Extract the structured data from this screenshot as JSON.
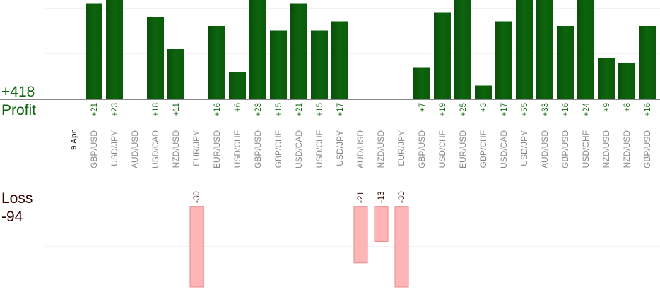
{
  "summary": {
    "profit_total": "+418",
    "profit_label": "Profit",
    "loss_label": "Loss",
    "loss_total": "-94"
  },
  "colors": {
    "profit_bar": "#0d650d",
    "profit_text": "#0d650d",
    "loss_bar": "#ffb5b5",
    "loss_bar_border": "#e38b8b",
    "loss_text": "#330000",
    "gridline": "#e6e6e6",
    "axis": "#888888",
    "category_text": "#888888"
  },
  "chart_data": {
    "type": "bar",
    "date_label": "9 Apr",
    "categories": [
      "GBP/USD",
      "USD/JPY",
      "AUD/USD",
      "USD/CAD",
      "NZD/USD",
      "EUR/JPY",
      "EUR/USD",
      "USD/CHF",
      "GBP/USD",
      "GBP/CHF",
      "USD/CAD",
      "USD/CHF",
      "USD/JPY",
      "AUD/USD",
      "NZD/USD",
      "EUR/JPY",
      "GBP/USD",
      "USD/CHF",
      "EUR/USD",
      "GBP/CHF",
      "USD/CAD",
      "USD/JPY",
      "AUD/USD",
      "GBP/USD",
      "USD/CHF",
      "NZD/USD",
      "NZD/USD",
      "GBP/USD"
    ],
    "values": [
      21,
      23,
      null,
      18,
      11,
      -30,
      16,
      6,
      23,
      15,
      21,
      15,
      17,
      -21,
      -13,
      -30,
      7,
      19,
      25,
      3,
      17,
      55,
      33,
      16,
      24,
      9,
      8,
      16
    ],
    "value_labels": [
      "+21",
      "+23",
      "",
      "+18",
      "+11",
      "-30",
      "+16",
      "+6",
      "+23",
      "+15",
      "+21",
      "+15",
      "+17",
      "-21",
      "-13",
      "-30",
      "+7",
      "+19",
      "+25",
      "+3",
      "+17",
      "+55",
      "+33",
      "+16",
      "+24",
      "+9",
      "+8",
      "+16"
    ],
    "ylim_profit": [
      0,
      22
    ],
    "ylim_loss": [
      0,
      40
    ]
  }
}
